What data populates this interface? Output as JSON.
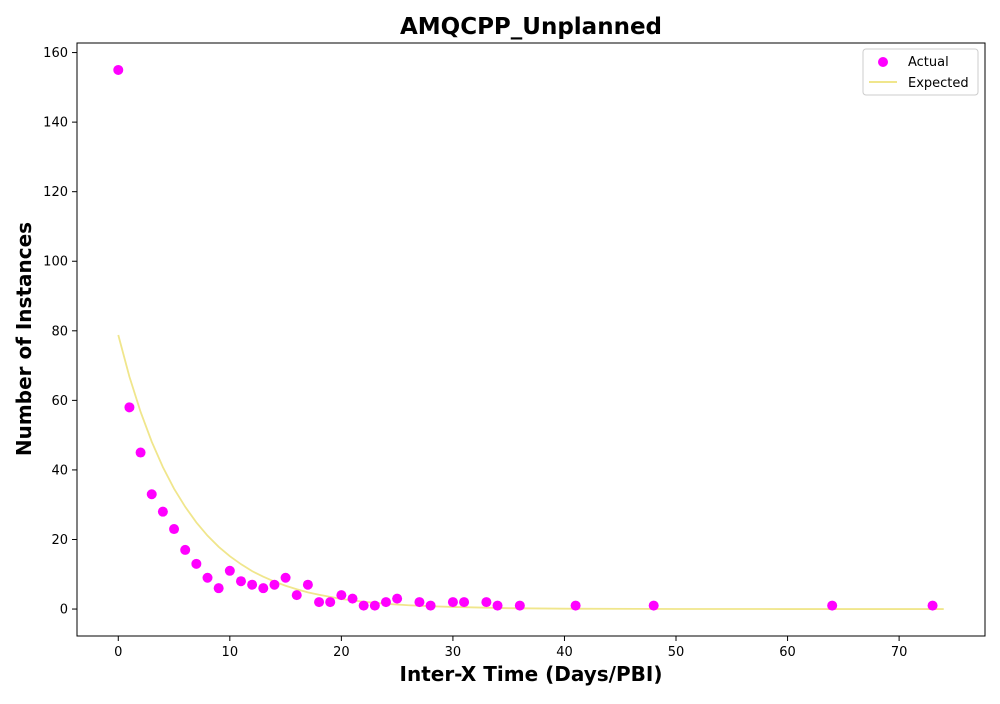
{
  "chart_data": {
    "type": "scatter",
    "title": "AMQCPP_Unplanned",
    "xlabel": "Inter-X Time (Days/PBI)",
    "ylabel": "Number of Instances",
    "xlim": [
      -3.7,
      77.7
    ],
    "ylim": [
      -7.75,
      162.75
    ],
    "xticks": [
      0,
      10,
      20,
      30,
      40,
      50,
      60,
      70
    ],
    "yticks": [
      0,
      20,
      40,
      60,
      80,
      100,
      120,
      140,
      160
    ],
    "grid": false,
    "legend_position": "top-right",
    "series": [
      {
        "name": "Actual",
        "kind": "scatter",
        "color": "#ff00ff",
        "points": [
          [
            0,
            155
          ],
          [
            1,
            58
          ],
          [
            2,
            45
          ],
          [
            3,
            33
          ],
          [
            4,
            28
          ],
          [
            5,
            23
          ],
          [
            6,
            17
          ],
          [
            7,
            13
          ],
          [
            8,
            9
          ],
          [
            9,
            6
          ],
          [
            10,
            11
          ],
          [
            11,
            8
          ],
          [
            12,
            7
          ],
          [
            13,
            6
          ],
          [
            14,
            7
          ],
          [
            15,
            9
          ],
          [
            16,
            4
          ],
          [
            17,
            7
          ],
          [
            18,
            2
          ],
          [
            19,
            2
          ],
          [
            20,
            4
          ],
          [
            21,
            3
          ],
          [
            22,
            1
          ],
          [
            23,
            1
          ],
          [
            24,
            2
          ],
          [
            25,
            3
          ],
          [
            27,
            2
          ],
          [
            28,
            1
          ],
          [
            30,
            2
          ],
          [
            31,
            2
          ],
          [
            33,
            2
          ],
          [
            34,
            1
          ],
          [
            36,
            1
          ],
          [
            41,
            1
          ],
          [
            48,
            1
          ],
          [
            64,
            1
          ],
          [
            73,
            1
          ]
        ]
      },
      {
        "name": "Expected",
        "kind": "line",
        "color": "#f0e68c",
        "points": [
          [
            0,
            78.8
          ],
          [
            1,
            66.8
          ],
          [
            2,
            56.7
          ],
          [
            3,
            48.1
          ],
          [
            4,
            40.8
          ],
          [
            5,
            34.6
          ],
          [
            6,
            29.4
          ],
          [
            7,
            24.9
          ],
          [
            8,
            21.1
          ],
          [
            9,
            17.9
          ],
          [
            10,
            15.2
          ],
          [
            11,
            12.9
          ],
          [
            12,
            10.9
          ],
          [
            13,
            9.3
          ],
          [
            14,
            7.9
          ],
          [
            15,
            6.7
          ],
          [
            16,
            5.7
          ],
          [
            17,
            4.8
          ],
          [
            18,
            4.1
          ],
          [
            19,
            3.5
          ],
          [
            20,
            2.9
          ],
          [
            22,
            2.1
          ],
          [
            24,
            1.5
          ],
          [
            26,
            1.1
          ],
          [
            28,
            0.8
          ],
          [
            30,
            0.6
          ],
          [
            35,
            0.25
          ],
          [
            40,
            0.1
          ],
          [
            50,
            0.02
          ],
          [
            60,
            0
          ],
          [
            70,
            0
          ],
          [
            74,
            0
          ]
        ]
      }
    ]
  }
}
